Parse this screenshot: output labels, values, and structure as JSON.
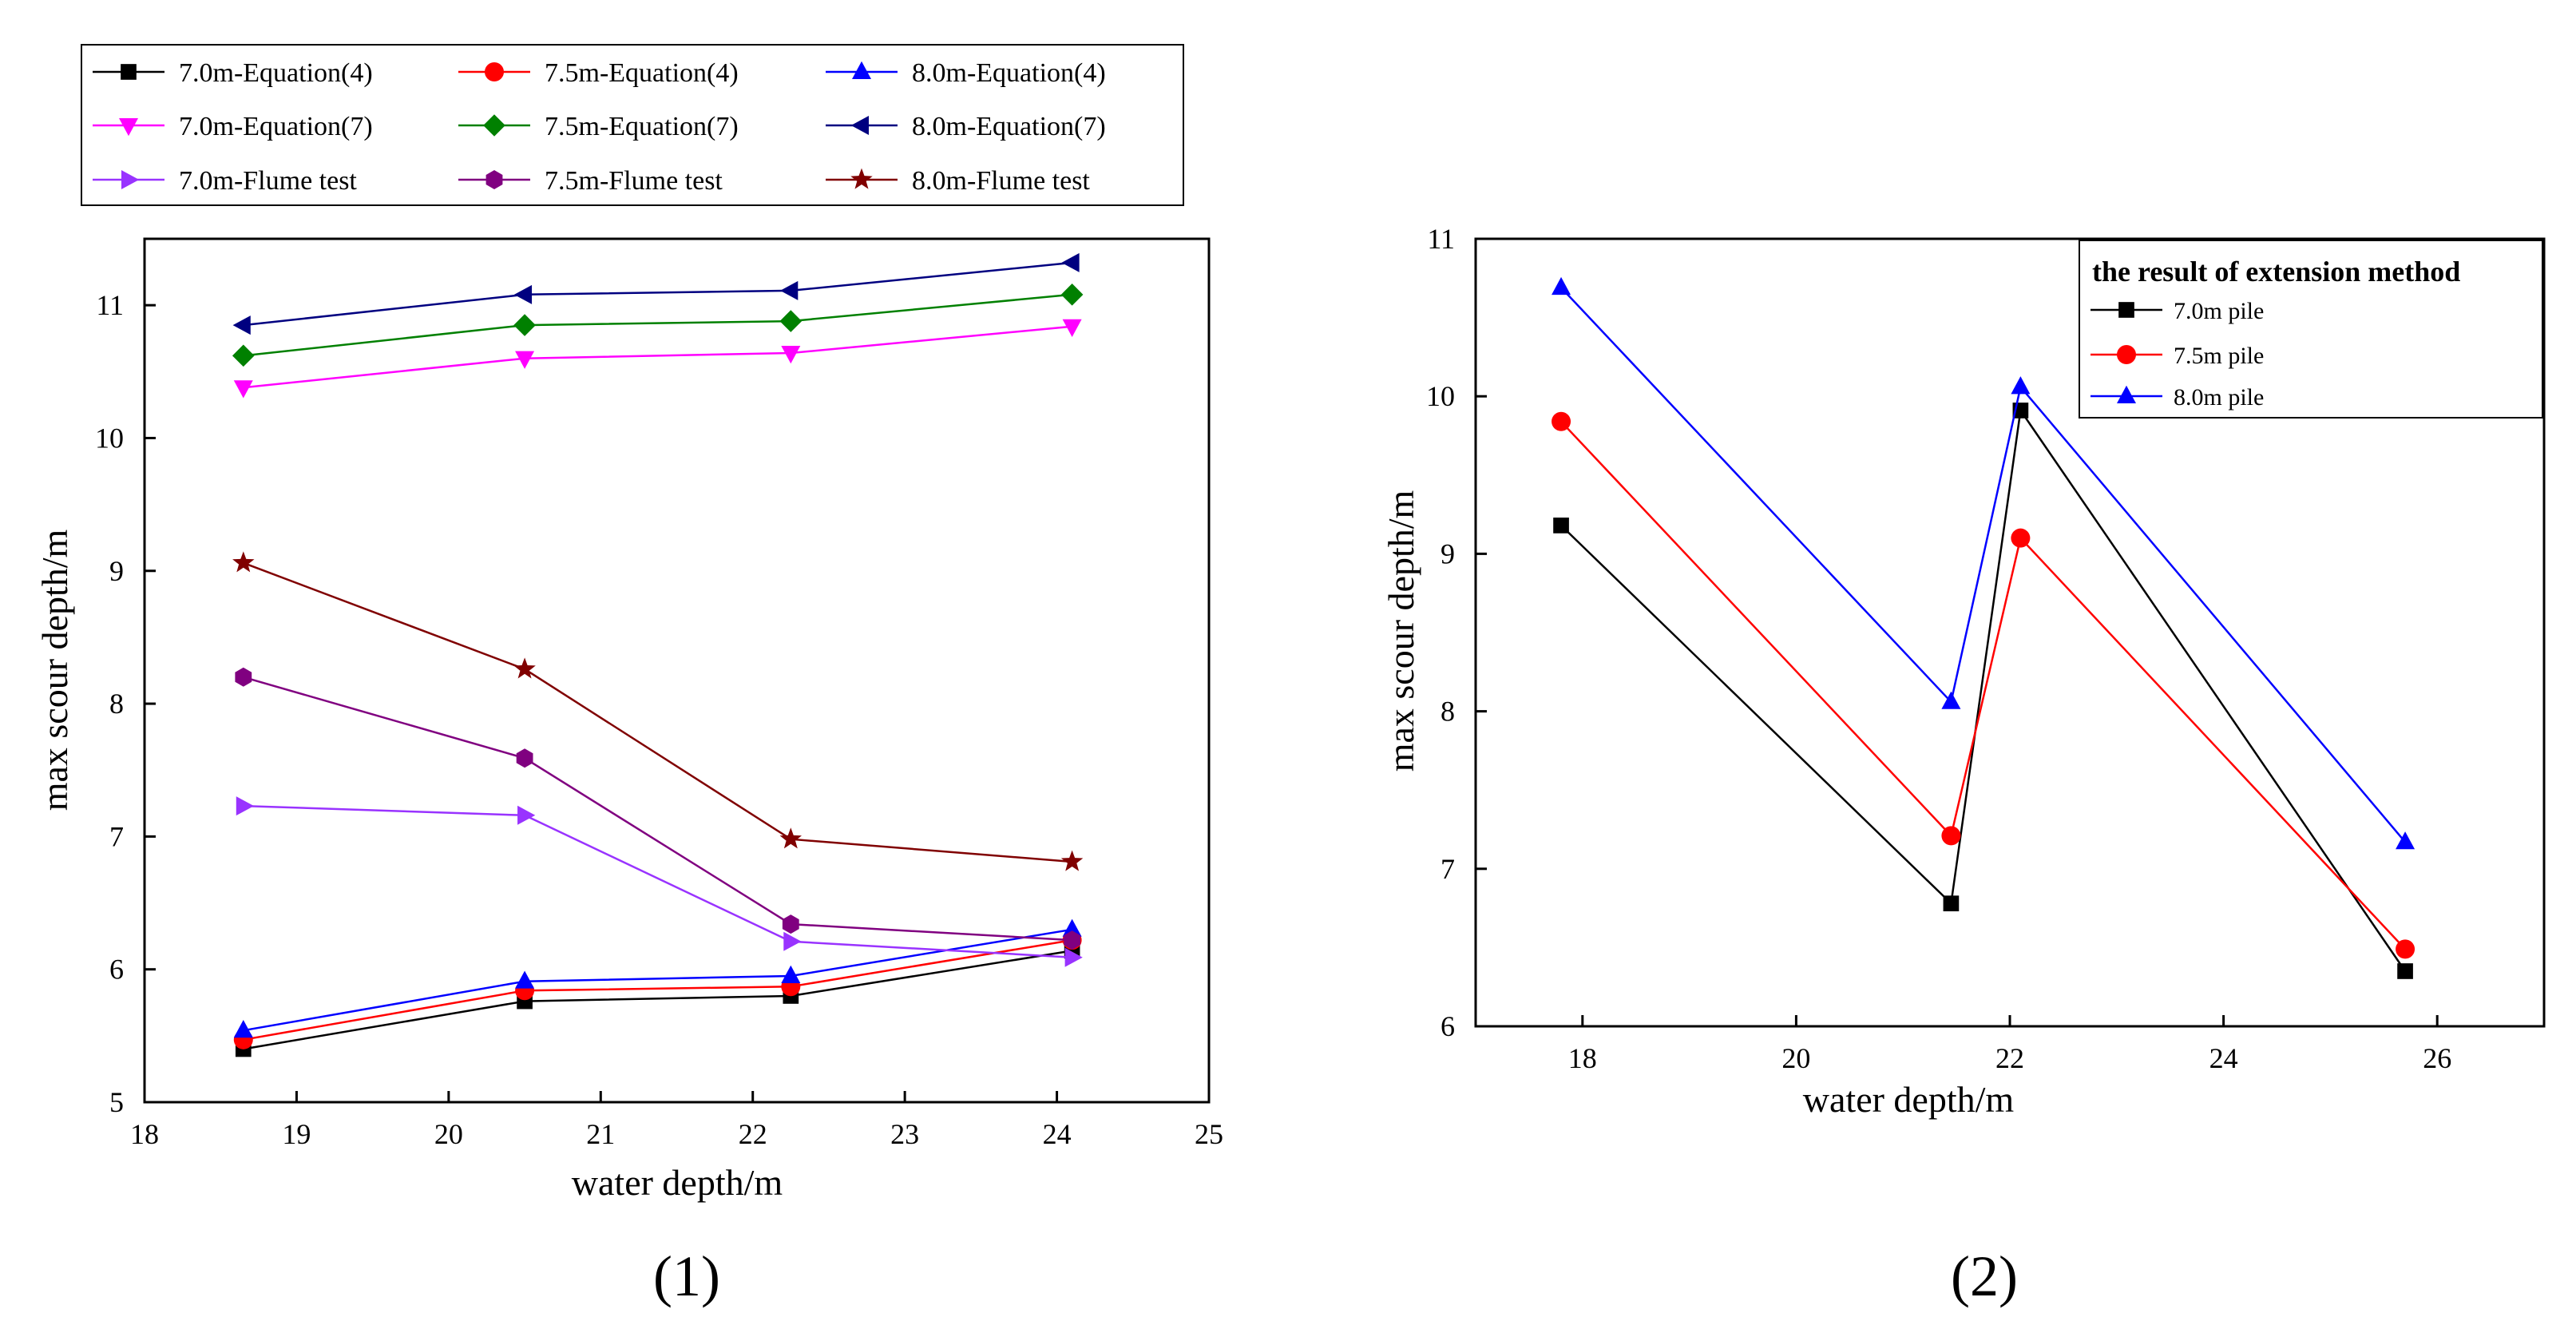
{
  "panel_labels": [
    "(1)",
    "(2)"
  ],
  "chart_data": [
    {
      "type": "line",
      "title": "",
      "xlabel": "water depth/m",
      "ylabel": "max scour depth/m",
      "xlim": [
        18,
        25
      ],
      "ylim": [
        5,
        11.5
      ],
      "xticks": [
        18,
        19,
        20,
        21,
        22,
        23,
        24,
        25
      ],
      "yticks": [
        5,
        6,
        7,
        8,
        9,
        10,
        11
      ],
      "legend_position": "top",
      "series": [
        {
          "name": "7.0m-Equation(4)",
          "color": "#000000",
          "marker": "square",
          "x": [
            18.65,
            20.5,
            22.25,
            24.1
          ],
          "y": [
            5.4,
            5.76,
            5.8,
            6.14
          ]
        },
        {
          "name": "7.5m-Equation(4)",
          "color": "#ff0000",
          "marker": "circle",
          "x": [
            18.65,
            20.5,
            22.25,
            24.1
          ],
          "y": [
            5.47,
            5.84,
            5.87,
            6.22
          ]
        },
        {
          "name": "8.0m-Equation(4)",
          "color": "#0000ff",
          "marker": "triangle-up",
          "x": [
            18.65,
            20.5,
            22.25,
            24.1
          ],
          "y": [
            5.54,
            5.91,
            5.95,
            6.3
          ]
        },
        {
          "name": "7.0m-Equation(7)",
          "color": "#ff00ff",
          "marker": "triangle-down",
          "x": [
            18.65,
            20.5,
            22.25,
            24.1
          ],
          "y": [
            10.38,
            10.6,
            10.64,
            10.84
          ]
        },
        {
          "name": "7.5m-Equation(7)",
          "color": "#008000",
          "marker": "diamond",
          "x": [
            18.65,
            20.5,
            22.25,
            24.1
          ],
          "y": [
            10.62,
            10.85,
            10.88,
            11.08
          ]
        },
        {
          "name": "8.0m-Equation(7)",
          "color": "#000080",
          "marker": "triangle-left",
          "x": [
            18.65,
            20.5,
            22.25,
            24.1
          ],
          "y": [
            10.85,
            11.08,
            11.11,
            11.32
          ]
        },
        {
          "name": "7.0m-Flume test",
          "color": "#9933ff",
          "marker": "triangle-right",
          "x": [
            18.65,
            20.5,
            22.25,
            24.1
          ],
          "y": [
            7.23,
            7.16,
            6.21,
            6.09
          ]
        },
        {
          "name": "7.5m-Flume test",
          "color": "#800080",
          "marker": "hexagon",
          "x": [
            18.65,
            20.5,
            22.25,
            24.1
          ],
          "y": [
            8.2,
            7.59,
            6.34,
            6.22
          ]
        },
        {
          "name": "8.0m-Flume test",
          "color": "#800000",
          "marker": "star",
          "x": [
            18.65,
            20.5,
            22.25,
            24.1
          ],
          "y": [
            9.06,
            8.26,
            6.98,
            6.81
          ]
        }
      ]
    },
    {
      "type": "line",
      "title": "",
      "xlabel": "water depth/m",
      "ylabel": "max scour depth/m",
      "xlim": [
        17,
        27
      ],
      "ylim": [
        6,
        11
      ],
      "xticks": [
        18,
        20,
        22,
        24,
        26
      ],
      "yticks": [
        6,
        7,
        8,
        9,
        10,
        11
      ],
      "legend_title": "the result of extension method",
      "legend_position": "top-right",
      "series": [
        {
          "name": "7.0m pile",
          "color": "#000000",
          "marker": "square",
          "x": [
            17.8,
            21.45,
            22.1,
            25.7
          ],
          "y": [
            9.18,
            6.78,
            9.91,
            6.35
          ]
        },
        {
          "name": "7.5m pile",
          "color": "#ff0000",
          "marker": "circle",
          "x": [
            17.8,
            21.45,
            22.1,
            25.7
          ],
          "y": [
            9.84,
            7.21,
            9.1,
            6.49
          ]
        },
        {
          "name": "8.0m pile",
          "color": "#0000ff",
          "marker": "triangle-up",
          "x": [
            17.8,
            21.45,
            22.1,
            25.7
          ],
          "y": [
            10.69,
            8.06,
            10.06,
            7.17
          ]
        }
      ]
    }
  ]
}
